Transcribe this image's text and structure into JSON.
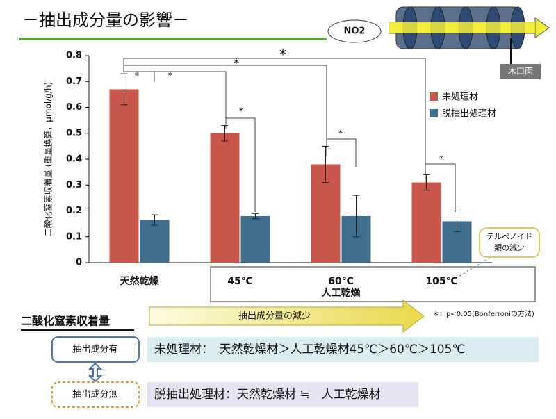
{
  "slide_title": "－抽出成分量の影響－",
  "diagram": {
    "gas": "NO2",
    "face": "木口面"
  },
  "chart_data": {
    "type": "bar",
    "y_label": "二酸化窒素収着量 (重量換算，μmol/g/h)",
    "categories": [
      "天然乾燥",
      "45℃",
      "60℃",
      "105℃"
    ],
    "group_label": "人工乾燥",
    "series": [
      {
        "name": "未処理材",
        "color": "#c9574b",
        "values": [
          0.67,
          0.5,
          0.38,
          0.31
        ],
        "errors": [
          0.06,
          0.03,
          0.07,
          0.03
        ]
      },
      {
        "name": "脱抽出処理材",
        "color": "#3f6e8e",
        "values": [
          0.165,
          0.18,
          0.18,
          0.16
        ],
        "errors": [
          0.02,
          0.01,
          0.08,
          0.04
        ]
      }
    ],
    "ylim": [
      0,
      0.8
    ],
    "yticks": [
      0,
      0.1,
      0.2,
      0.3,
      0.4,
      0.5,
      0.6,
      0.7,
      0.8
    ],
    "legend": "right",
    "significance": [
      "*",
      "*",
      "*",
      "*",
      "*",
      "*",
      "*"
    ],
    "callout": [
      "テルペノイド",
      "類の減少"
    ],
    "footnote": "＊：p<0.05(Bonferroniの方法)"
  },
  "summary": {
    "heading": "二酸化窒素収着量",
    "arrow_label": "抽出成分量の減少",
    "rows": [
      {
        "label": "抽出成分有",
        "text": "未処理材：　天然乾燥材＞人工乾燥材45℃＞60℃＞105℃"
      },
      {
        "label": "抽出成分無",
        "text": "脱抽出処理材：天然乾燥材 ≒　人工乾燥材"
      }
    ]
  }
}
